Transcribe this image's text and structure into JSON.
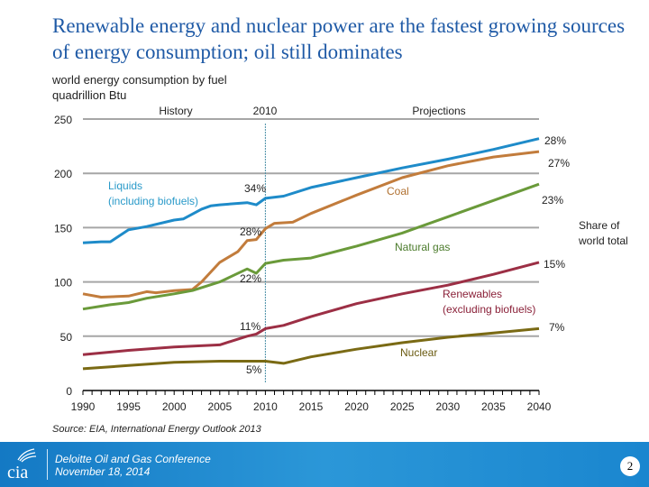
{
  "slide": {
    "title": "Renewable energy and nuclear power are the fastest growing sources of energy consumption; oil still dominates",
    "subtitle_line1": "world energy consumption by fuel",
    "subtitle_line2": "quadrillion Btu",
    "source": "Source:  EIA, International Energy Outlook 2013",
    "footer_line1": "Deloitte Oil and Gas Conference",
    "footer_line2": "November 18, 2014",
    "page_number": "2",
    "logo_text": "cia"
  },
  "chart_data": {
    "type": "line",
    "title": "",
    "xlabel": "",
    "ylabel": "quadrillion Btu",
    "xlim": [
      1990,
      2040
    ],
    "ylim": [
      0,
      250
    ],
    "x_ticks": [
      "1990",
      "1995",
      "2000",
      "2005",
      "2010",
      "2015",
      "2020",
      "2025",
      "2030",
      "2035",
      "2040"
    ],
    "y_ticks": [
      "0",
      "50",
      "100",
      "150",
      "200",
      "250"
    ],
    "grid": true,
    "divider_year": 2010,
    "section_labels": {
      "history": "History",
      "divider": "2010",
      "projections": "Projections"
    },
    "share_header": "Share of world total",
    "series": [
      {
        "name": "Liquids (including biofuels)",
        "color": "#1e8bc9",
        "x": [
          1990,
          1992,
          1993,
          1995,
          1997,
          2000,
          2001,
          2003,
          2004,
          2005,
          2008,
          2009,
          2010,
          2012,
          2015,
          2020,
          2025,
          2030,
          2035,
          2040
        ],
        "y": [
          136,
          137,
          137,
          148,
          151,
          157,
          158,
          167,
          170,
          171,
          173,
          171,
          177,
          179,
          187,
          196,
          205,
          213,
          222,
          232
        ],
        "share_2010": "34%",
        "share_2040": "28%"
      },
      {
        "name": "Coal",
        "color": "#c27c3c",
        "x": [
          1990,
          1992,
          1995,
          1997,
          1998,
          2000,
          2002,
          2003,
          2005,
          2007,
          2008,
          2009,
          2010,
          2011,
          2013,
          2015,
          2020,
          2025,
          2030,
          2035,
          2040
        ],
        "y": [
          89,
          86,
          87,
          91,
          90,
          92,
          93,
          100,
          118,
          128,
          138,
          139,
          149,
          154,
          155,
          163,
          180,
          196,
          207,
          215,
          220
        ],
        "share_2010": "28%",
        "share_2040": "27%"
      },
      {
        "name": "Natural gas",
        "color": "#6a9a3a",
        "x": [
          1990,
          1993,
          1995,
          1997,
          2000,
          2002,
          2005,
          2008,
          2009,
          2010,
          2012,
          2015,
          2020,
          2025,
          2030,
          2035,
          2040
        ],
        "y": [
          75,
          79,
          81,
          85,
          89,
          92,
          100,
          112,
          108,
          117,
          120,
          122,
          133,
          145,
          160,
          175,
          190
        ],
        "share_2010": "22%",
        "share_2040": "23%"
      },
      {
        "name": "Renewables (excluding biofuels)",
        "color": "#9c2f45",
        "x": [
          1990,
          1995,
          2000,
          2005,
          2008,
          2009,
          2010,
          2012,
          2015,
          2020,
          2025,
          2030,
          2035,
          2040
        ],
        "y": [
          33,
          37,
          40,
          42,
          50,
          52,
          57,
          60,
          68,
          80,
          89,
          97,
          107,
          118
        ],
        "share_2010": "11%",
        "share_2040": "15%"
      },
      {
        "name": "Nuclear",
        "color": "#7a6a14",
        "x": [
          1990,
          1995,
          2000,
          2005,
          2010,
          2012,
          2015,
          2020,
          2025,
          2030,
          2035,
          2040
        ],
        "y": [
          20,
          23,
          26,
          27,
          27,
          25,
          31,
          38,
          44,
          49,
          53,
          57
        ],
        "share_2010": "5%",
        "share_2040": "7%"
      }
    ]
  }
}
